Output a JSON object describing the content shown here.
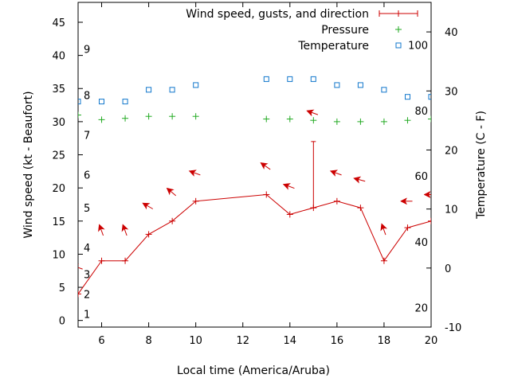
{
  "chart_data": {
    "type": "line",
    "xlabel": "Local time (America/Aruba)",
    "ylabel": "Wind speed (kt - Beaufort)",
    "y2label": "Temperature (C - F)",
    "xlim": [
      5,
      20
    ],
    "ylim": [
      -1,
      48
    ],
    "y2lim": [
      -10,
      45
    ],
    "x_ticks": [
      6,
      8,
      10,
      12,
      14,
      16,
      18,
      20
    ],
    "y_ticks": [
      0,
      5,
      10,
      15,
      20,
      25,
      30,
      35,
      40,
      45
    ],
    "y2_ticks": [
      -10,
      0,
      10,
      20,
      30,
      40
    ],
    "beaufort_labels": [
      {
        "label": "1",
        "kt": 1
      },
      {
        "label": "2",
        "kt": 4
      },
      {
        "label": "3",
        "kt": 7
      },
      {
        "label": "4",
        "kt": 11
      },
      {
        "label": "5",
        "kt": 17
      },
      {
        "label": "6",
        "kt": 22
      },
      {
        "label": "7",
        "kt": 28
      },
      {
        "label": "8",
        "kt": 34
      },
      {
        "label": "9",
        "kt": 41
      }
    ],
    "fahrenheit_labels": [
      {
        "label": "20",
        "celsius": -6.7
      },
      {
        "label": "40",
        "celsius": 4.4
      },
      {
        "label": "60",
        "celsius": 15.6
      },
      {
        "label": "80",
        "celsius": 26.7
      },
      {
        "label": "100",
        "celsius": 37.8
      }
    ],
    "legend_position": "top-right",
    "series": [
      {
        "name": "Wind speed, gusts, and direction",
        "color": "#cc0000",
        "x": [
          5,
          6,
          7,
          8,
          9,
          10,
          13,
          14,
          15,
          16,
          17,
          18,
          19,
          20
        ],
        "values": [
          4,
          9,
          9,
          13,
          15,
          18,
          19,
          16,
          17,
          18,
          17,
          9,
          14,
          15
        ],
        "gusts": [
          {
            "x": 15,
            "value": 27
          }
        ],
        "direction_arrows": [
          {
            "x": 5,
            "y": 8,
            "angle": 200
          },
          {
            "x": 6,
            "y": 13.5,
            "angle": 250
          },
          {
            "x": 7,
            "y": 13.5,
            "angle": 250
          },
          {
            "x": 8,
            "y": 17.2,
            "angle": 210
          },
          {
            "x": 9,
            "y": 19.3,
            "angle": 220
          },
          {
            "x": 10,
            "y": 22.2,
            "angle": 200
          },
          {
            "x": 13,
            "y": 23.2,
            "angle": 215
          },
          {
            "x": 14,
            "y": 20.2,
            "angle": 200
          },
          {
            "x": 15,
            "y": 31.3,
            "angle": 200
          },
          {
            "x": 16,
            "y": 22.2,
            "angle": 200
          },
          {
            "x": 17,
            "y": 21.2,
            "angle": 195
          },
          {
            "x": 18,
            "y": 13.6,
            "angle": 250
          },
          {
            "x": 19,
            "y": 18,
            "angle": 180
          },
          {
            "x": 20,
            "y": 19,
            "angle": 180
          },
          {
            "x": 20.8,
            "y": 18,
            "angle": 180
          }
        ]
      },
      {
        "name": "Pressure",
        "color": "#22aa22",
        "x": [
          5,
          6,
          7,
          8,
          9,
          10,
          13,
          14,
          15,
          16,
          17,
          18,
          19,
          20
        ],
        "values": [
          31,
          30.3,
          30.5,
          30.8,
          30.8,
          30.8,
          30.4,
          30.4,
          30.2,
          30,
          30,
          30,
          30.2,
          30.4
        ]
      },
      {
        "name": "Temperature",
        "color": "#1177cc",
        "x": [
          5,
          6,
          7,
          8,
          9,
          10,
          13,
          14,
          15,
          16,
          17,
          18,
          19,
          20
        ],
        "values": [
          28.2,
          28.2,
          28.2,
          30.2,
          30.2,
          31,
          32,
          32,
          32,
          31,
          31,
          30.2,
          29,
          29
        ]
      }
    ]
  }
}
